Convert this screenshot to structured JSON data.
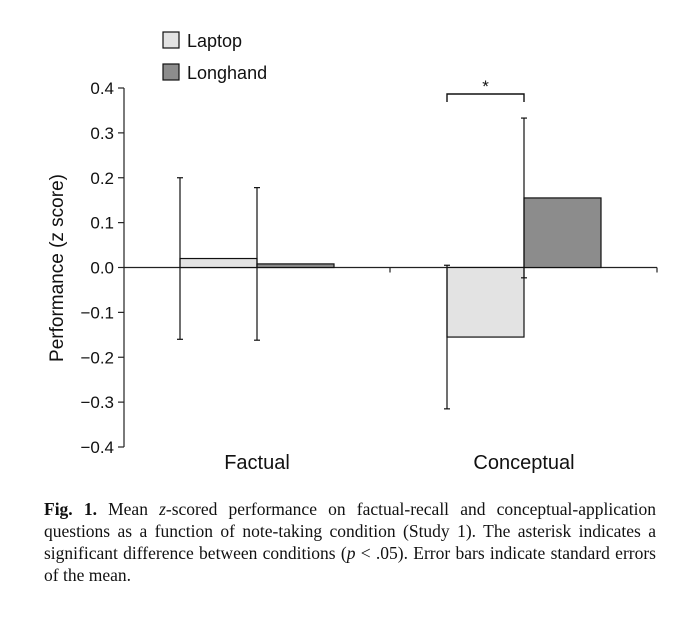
{
  "chart_data": {
    "type": "bar",
    "ylabel": "Performance (z score)",
    "ylim": [
      -0.4,
      0.4
    ],
    "yticks": [
      0.4,
      0.3,
      0.2,
      0.1,
      0.0,
      -0.1,
      -0.2,
      -0.3,
      -0.4
    ],
    "ytick_labels": [
      "0.4",
      "0.3",
      "0.2",
      "0.1",
      "0.0",
      "−0.1",
      "−0.2",
      "−0.3",
      "−0.4"
    ],
    "categories": [
      "Factual",
      "Conceptual"
    ],
    "legend_position": "top-left",
    "series": [
      {
        "name": "Laptop",
        "color": "#e3e3e3",
        "values": [
          0.02,
          -0.155
        ],
        "error": [
          0.18,
          0.16
        ]
      },
      {
        "name": "Longhand",
        "color": "#8c8c8c",
        "values": [
          0.008,
          0.155
        ],
        "error": [
          0.17,
          0.178
        ]
      }
    ],
    "annotation": {
      "text": "*",
      "category": "Conceptual"
    }
  },
  "caption": {
    "label": "Fig. 1.",
    "text_1": " Mean ",
    "italic_1": "z",
    "text_2": "-scored performance on factual-recall and conceptual-application questions as a function of note-taking condition (Study 1). The asterisk indicates a significant difference between conditions (",
    "italic_2": "p",
    "text_3": " < .05). Error bars indicate standard errors of the mean."
  }
}
